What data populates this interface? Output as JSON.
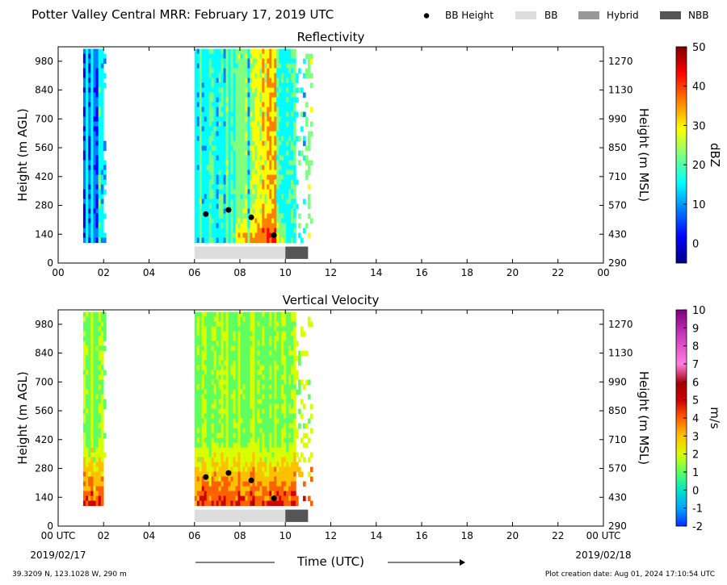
{
  "header": {
    "title": "Potter Valley Central MRR:  February 17, 2019 UTC",
    "legend": [
      {
        "label": "BB Height",
        "kind": "dot",
        "color": "#000000"
      },
      {
        "label": "BB",
        "kind": "box",
        "color": "#dcdcdc"
      },
      {
        "label": "Hybrid",
        "kind": "box",
        "color": "#999999"
      },
      {
        "label": "NBB",
        "kind": "box",
        "color": "#555555"
      }
    ]
  },
  "footer": {
    "location": "39.3209 N, 123.1028 W, 290 m",
    "creation": "Plot creation date: Aug 01, 2024 17:10:54 UTC",
    "xlabel": "Time (UTC)",
    "start_date": "2019/02/17",
    "end_date": "2019/02/18"
  },
  "colors": {
    "reflectivity_scale": [
      "#00007f",
      "#0000ff",
      "#0080ff",
      "#00ffff",
      "#80ff80",
      "#ffff00",
      "#ff8000",
      "#ff0000",
      "#7f0000"
    ],
    "velocity_scale": [
      "#0030ff",
      "#00a0ff",
      "#00e8c0",
      "#60ff60",
      "#d8ff00",
      "#ffc000",
      "#ff6000",
      "#d00000",
      "#a00000",
      "#ff80e0",
      "#d040c0",
      "#800080"
    ]
  },
  "chart_data": [
    {
      "type": "heatmap",
      "title": "Reflectivity",
      "xlabel": "",
      "ylabel": "Height (m AGL)",
      "ylabel_right": "Height (m MSL)",
      "xlim": [
        0,
        24
      ],
      "ylim": [
        0,
        1050
      ],
      "x_ticks": [
        "00",
        "02",
        "04",
        "06",
        "08",
        "10",
        "12",
        "14",
        "16",
        "18",
        "20",
        "22",
        "00"
      ],
      "y_ticks": [
        0,
        140,
        280,
        420,
        560,
        700,
        840,
        980
      ],
      "y_ticks_right": [
        290,
        430,
        570,
        710,
        850,
        990,
        1130,
        1270
      ],
      "colorbar": {
        "label": "dBZ",
        "min": -5,
        "max": 50,
        "ticks": [
          0,
          10,
          20,
          30,
          40,
          50
        ]
      },
      "data_periods_hours": [
        [
          1.1,
          2.1
        ],
        [
          6.0,
          11.2
        ]
      ],
      "bb_height_points": [
        {
          "x": 6.5,
          "y": 238
        },
        {
          "x": 7.5,
          "y": 258
        },
        {
          "x": 8.5,
          "y": 222
        },
        {
          "x": 9.5,
          "y": 135
        }
      ],
      "bb_type_bar": [
        {
          "type": "BB",
          "start": 6.0,
          "end": 10.0
        },
        {
          "type": "NBB",
          "start": 10.0,
          "end": 11.0
        }
      ]
    },
    {
      "type": "heatmap",
      "title": "Vertical Velocity",
      "xlabel": "Time (UTC)",
      "ylabel": "Height (m AGL)",
      "ylabel_right": "Height (m MSL)",
      "xlim": [
        0,
        24
      ],
      "ylim": [
        0,
        1050
      ],
      "x_ticks": [
        "00 UTC",
        "02",
        "04",
        "06",
        "08",
        "10",
        "12",
        "14",
        "16",
        "18",
        "20",
        "22",
        "00 UTC"
      ],
      "y_ticks": [
        0,
        140,
        280,
        420,
        560,
        700,
        840,
        980
      ],
      "y_ticks_right": [
        290,
        430,
        570,
        710,
        850,
        990,
        1130,
        1270
      ],
      "colorbar": {
        "label": "m/s",
        "min": -2,
        "max": 10,
        "ticks": [
          -2,
          -1,
          0,
          1,
          2,
          3,
          4,
          5,
          6,
          7,
          8,
          9,
          10
        ]
      },
      "data_periods_hours": [
        [
          1.1,
          2.1
        ],
        [
          6.0,
          11.2
        ]
      ],
      "bb_height_points": [
        {
          "x": 6.5,
          "y": 238
        },
        {
          "x": 7.5,
          "y": 258
        },
        {
          "x": 8.5,
          "y": 222
        },
        {
          "x": 9.5,
          "y": 135
        }
      ],
      "bb_type_bar": [
        {
          "type": "BB",
          "start": 6.0,
          "end": 10.0
        },
        {
          "type": "NBB",
          "start": 10.0,
          "end": 11.0
        }
      ]
    }
  ]
}
